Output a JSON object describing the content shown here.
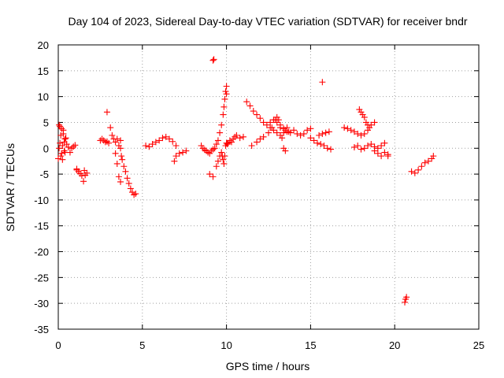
{
  "chart_data": {
    "type": "scatter",
    "title": "Day 104 of 2023, Sidereal Day-to-day VTEC variation (SDTVAR) for receiver bndr",
    "xlabel": "GPS time / hours",
    "ylabel": "SDTVAR / TECUs",
    "xlim": [
      0,
      25
    ],
    "ylim": [
      -35,
      20
    ],
    "xticks": [
      0,
      5,
      10,
      15,
      20,
      25
    ],
    "yticks": [
      20,
      15,
      10,
      5,
      0,
      -5,
      -10,
      -15,
      -20,
      -25,
      -30,
      -35
    ],
    "grid": true,
    "marker": "plus",
    "color": "#ff0000",
    "series": [
      {
        "name": "SDTVAR",
        "x": [
          0.0,
          0.05,
          0.1,
          0.15,
          0.2,
          0.25,
          0.3,
          0.35,
          0.4,
          0.45,
          0.5,
          0.6,
          0.7,
          0.8,
          0.9,
          1.0,
          1.1,
          0.05,
          0.1,
          0.15,
          0.2,
          0.25,
          0.3,
          0.35,
          0.4,
          1.1,
          1.2,
          1.3,
          1.4,
          1.5,
          1.55,
          1.6,
          1.7,
          2.5,
          2.6,
          2.7,
          2.8,
          2.9,
          3.0,
          2.9,
          3.1,
          3.2,
          3.3,
          3.4,
          3.5,
          3.6,
          3.7,
          3.4,
          3.5,
          3.6,
          3.7,
          3.8,
          3.9,
          4.0,
          4.1,
          4.2,
          4.3,
          4.4,
          4.5,
          4.6,
          3.7,
          3.75,
          5.2,
          5.4,
          5.6,
          5.8,
          6.0,
          6.2,
          6.4,
          6.6,
          6.8,
          7.0,
          6.9,
          7.0,
          7.2,
          7.4,
          7.6,
          8.5,
          8.6,
          8.7,
          8.8,
          8.9,
          9.0,
          9.1,
          9.2,
          9.3,
          9.4,
          9.5,
          9.6,
          9.7,
          9.8,
          9.85,
          9.9,
          9.95,
          10.0,
          10.0,
          9.0,
          9.2,
          9.4,
          9.5,
          9.6,
          9.7,
          9.75,
          9.8,
          9.85,
          9.9,
          9.95,
          10.0,
          10.05,
          10.1,
          10.2,
          10.3,
          10.4,
          10.5,
          10.6,
          10.8,
          11.0,
          9.2,
          9.25,
          11.2,
          11.4,
          11.6,
          11.8,
          12.0,
          12.2,
          12.4,
          12.6,
          12.8,
          13.0,
          13.2,
          13.4,
          13.5,
          13.6,
          13.7,
          11.5,
          11.8,
          12.0,
          12.2,
          12.5,
          12.7,
          12.9,
          13.0,
          13.1,
          13.2,
          13.3,
          13.4,
          13.5,
          12.6,
          12.8,
          13.0,
          13.2,
          13.4,
          13.6,
          13.8,
          14.0,
          14.2,
          14.4,
          14.6,
          14.8,
          15.0,
          15.0,
          15.2,
          15.4,
          15.6,
          15.8,
          16.0,
          16.2,
          15.5,
          15.7,
          15.9,
          16.1,
          15.7,
          17.0,
          17.2,
          17.4,
          17.6,
          17.8,
          18.0,
          18.2,
          18.4,
          18.6,
          18.8,
          17.9,
          18.0,
          18.1,
          18.2,
          18.3,
          18.4,
          18.5,
          17.6,
          17.8,
          18.0,
          18.2,
          18.4,
          18.6,
          18.8,
          19.0,
          19.2,
          19.4,
          19.6,
          18.8,
          19.0,
          19.2,
          19.4,
          19.6,
          20.6,
          20.65,
          20.7,
          21.0,
          21.2,
          21.4,
          21.6,
          21.8,
          22.0,
          22.2,
          22.3
        ],
        "y": [
          -2.0,
          0.0,
          4.2,
          2.5,
          -1.0,
          -2.2,
          3.5,
          1.2,
          -0.8,
          2.0,
          0.8,
          0.2,
          -0.8,
          0.0,
          0.3,
          0.6,
          -4.0,
          4.5,
          1.0,
          -1.5,
          3.8,
          0.5,
          2.8,
          -0.5,
          1.8,
          -4.2,
          -4.5,
          -4.9,
          -5.3,
          -6.4,
          -4.3,
          -5.2,
          -4.8,
          1.5,
          1.8,
          1.5,
          1.2,
          7.0,
          1.0,
          1.3,
          4.0,
          2.5,
          1.8,
          1.2,
          1.8,
          0.5,
          1.5,
          -1.0,
          -3.0,
          -5.5,
          -6.5,
          -2.2,
          -3.5,
          -4.5,
          -5.8,
          -6.8,
          -7.8,
          -8.5,
          -9.0,
          -8.8,
          0.0,
          -1.5,
          0.5,
          0.3,
          0.8,
          1.2,
          1.5,
          2.0,
          2.2,
          1.8,
          1.3,
          0.5,
          -2.5,
          -1.5,
          -1.0,
          -0.8,
          -0.5,
          0.5,
          0.0,
          -0.3,
          -0.5,
          -0.8,
          -1.0,
          -0.5,
          -0.2,
          0.0,
          0.8,
          1.5,
          3.0,
          4.5,
          6.5,
          8.0,
          9.5,
          11.0,
          12.0,
          10.5,
          -5.0,
          -5.5,
          -3.5,
          -2.5,
          -1.5,
          -0.8,
          -1.5,
          -2.2,
          -3.0,
          -1.5,
          0.5,
          1.0,
          0.8,
          1.0,
          1.5,
          1.2,
          1.8,
          2.2,
          2.5,
          2.0,
          2.2,
          17.0,
          17.2,
          9.0,
          8.2,
          7.2,
          6.5,
          5.8,
          5.0,
          4.5,
          4.0,
          3.5,
          3.0,
          2.5,
          3.0,
          3.5,
          4.0,
          3.2,
          0.5,
          1.2,
          1.8,
          2.2,
          3.0,
          4.0,
          5.5,
          6.0,
          5.5,
          4.0,
          2.0,
          0.0,
          -0.5,
          5.0,
          5.5,
          5.0,
          4.5,
          3.8,
          3.2,
          3.0,
          3.5,
          2.8,
          2.5,
          2.8,
          3.5,
          3.8,
          2.0,
          1.5,
          1.0,
          0.8,
          0.5,
          0.0,
          -0.2,
          2.5,
          2.8,
          3.0,
          3.2,
          12.8,
          4.0,
          3.8,
          3.5,
          3.2,
          2.8,
          2.5,
          2.8,
          3.5,
          4.5,
          5.0,
          7.5,
          7.0,
          6.5,
          6.0,
          5.0,
          4.5,
          4.0,
          0.2,
          0.5,
          -0.2,
          0.0,
          0.5,
          0.8,
          0.3,
          0.0,
          0.5,
          1.0,
          -1.5,
          -0.5,
          -1.0,
          -1.5,
          -0.8,
          -1.2,
          -29.8,
          -29.2,
          -28.8,
          -4.5,
          -4.8,
          -4.2,
          -3.5,
          -2.8,
          -2.5,
          -2.0,
          -1.5
        ]
      }
    ]
  }
}
